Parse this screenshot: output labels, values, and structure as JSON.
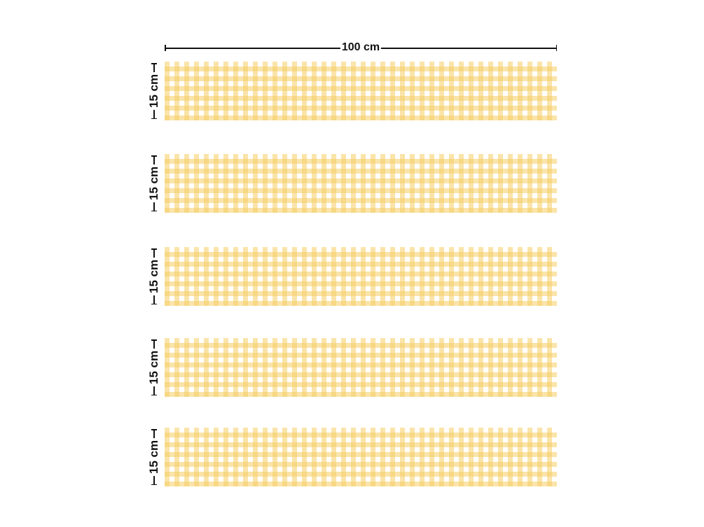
{
  "width_label": "100 cm",
  "strips": [
    {
      "height_label": "15 cm"
    },
    {
      "height_label": "15 cm"
    },
    {
      "height_label": "15 cm"
    },
    {
      "height_label": "15 cm"
    },
    {
      "height_label": "15 cm"
    }
  ],
  "colors": {
    "gingham_dark": "#f5d37a",
    "gingham_light": "#fbe9b8",
    "background": "#ffffff"
  }
}
